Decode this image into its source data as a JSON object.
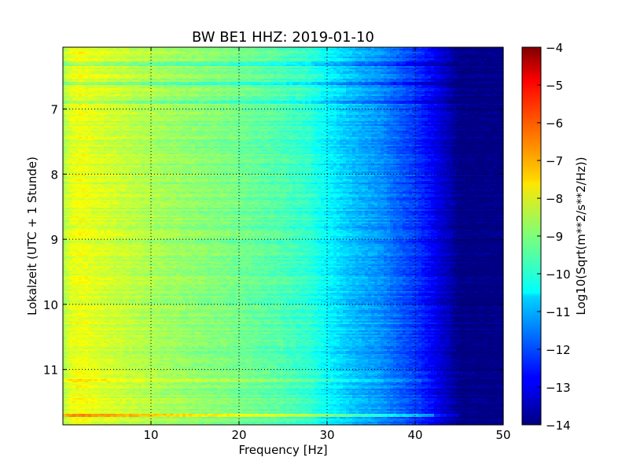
{
  "chart_data": {
    "type": "heatmap",
    "title": "BW BE1 HHZ: 2019-01-10",
    "xlabel": "Frequency [Hz]",
    "ylabel": "Lokalzeit (UTC + 1 Stunde)",
    "xlim": [
      0,
      50
    ],
    "ylim": [
      11.85,
      6.05
    ],
    "y_inverted": true,
    "x_ticks": [
      "10",
      "20",
      "30",
      "40",
      "50"
    ],
    "x_tick_values": [
      10,
      20,
      30,
      40,
      50
    ],
    "y_ticks": [
      "7",
      "8",
      "9",
      "10",
      "11"
    ],
    "y_tick_values": [
      7,
      8,
      9,
      10,
      11
    ],
    "grid": true,
    "colormap": "jet",
    "colorbar": {
      "label": "Log10(Sqrt(m**2/s**2/Hz))",
      "range": [
        -14,
        -4
      ],
      "ticks": [
        "−4",
        "−5",
        "−6",
        "−7",
        "−8",
        "−9",
        "−10",
        "−11",
        "−12",
        "−13",
        "−14"
      ],
      "tick_values": [
        -4,
        -5,
        -6,
        -7,
        -8,
        -9,
        -10,
        -11,
        -12,
        -13,
        -14
      ]
    },
    "spectral_profile": {
      "frequency_hz": [
        0,
        1,
        2,
        4,
        8,
        12,
        18,
        24,
        28,
        30,
        33,
        36,
        38,
        40,
        42,
        43,
        44,
        45,
        50
      ],
      "level": [
        -8.6,
        -8.0,
        -7.9,
        -8.1,
        -8.4,
        -8.7,
        -9.0,
        -9.4,
        -9.8,
        -10.3,
        -10.9,
        -11.3,
        -11.8,
        -12.2,
        -12.8,
        -13.2,
        -13.5,
        -14,
        -14
      ]
    },
    "horizontal_bands": [
      {
        "time": 6.3,
        "offset": -0.7
      },
      {
        "time": 6.6,
        "offset": -0.8
      },
      {
        "time": 6.9,
        "offset": -0.6
      },
      {
        "time": 11.18,
        "offset": 0.7
      },
      {
        "time": 11.7,
        "offset": 1.3
      }
    ]
  }
}
